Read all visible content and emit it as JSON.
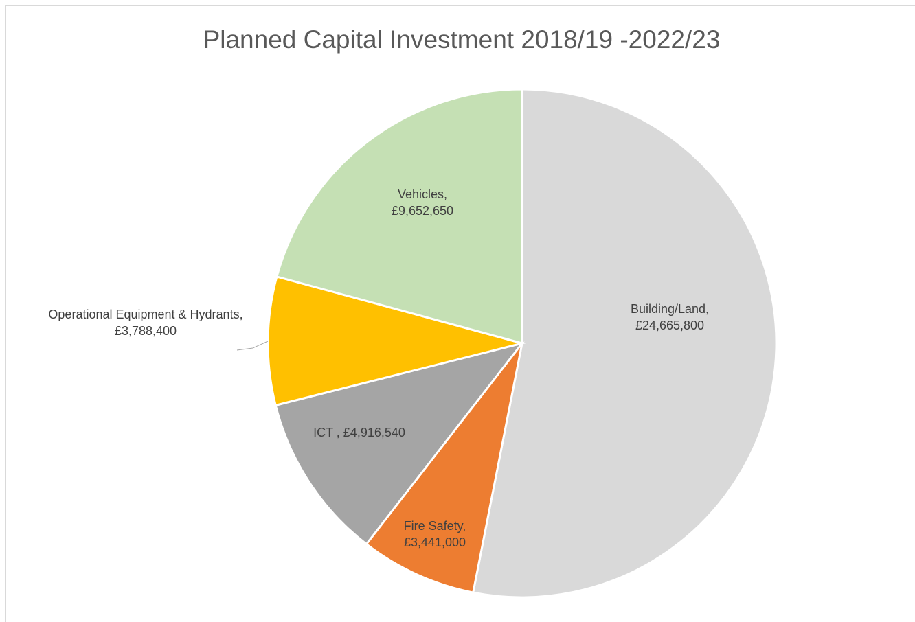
{
  "chart_data": {
    "type": "pie",
    "title": "Planned Capital Investment 2018/19 -2022/23",
    "categories": [
      "Building/Land,",
      "Fire Safety,",
      "ICT ,",
      "Operational Equipment & Hydrants,",
      "Vehicles,"
    ],
    "values": [
      24665800,
      3441000,
      4916540,
      3788400,
      9652650
    ],
    "value_labels": [
      "£24,665,800",
      "£3,441,000",
      "£4,916,540",
      "£3,788,400",
      "£9,652,650"
    ],
    "colors": [
      "#d9d9d9",
      "#ed7d31",
      "#a5a5a5",
      "#ffc000",
      "#c5e0b4"
    ]
  }
}
